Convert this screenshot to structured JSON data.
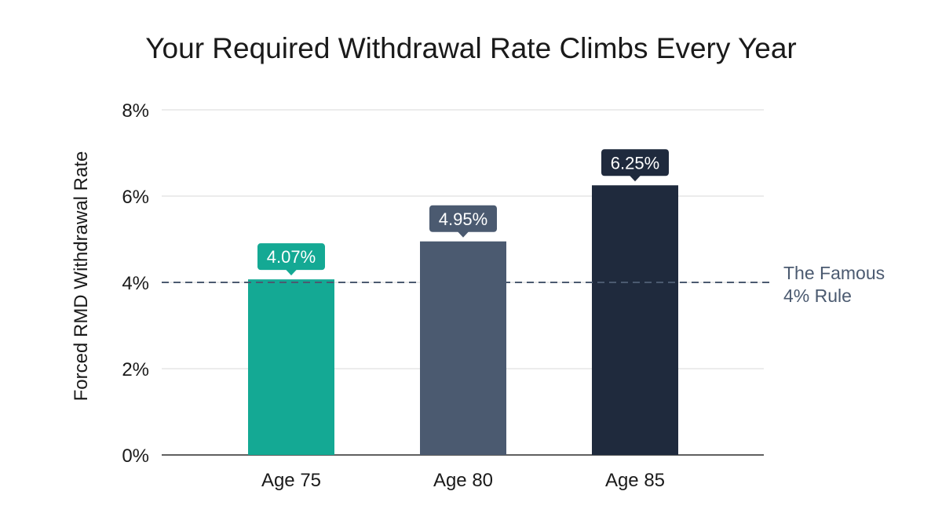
{
  "chart_data": {
    "type": "bar",
    "title": "Your Required Withdrawal Rate Climbs Every Year",
    "xlabel": "",
    "ylabel": "Forced RMD Withdrawal Rate",
    "categories": [
      "Age 75",
      "Age 80",
      "Age 85"
    ],
    "values": [
      4.07,
      4.95,
      6.25
    ],
    "data_labels": [
      "4.07%",
      "4.95%",
      "6.25%"
    ],
    "bar_colors": [
      "#14a994",
      "#4b5a70",
      "#1f2a3d"
    ],
    "ylim": [
      0,
      8
    ],
    "yticks": [
      0,
      2,
      4,
      6,
      8
    ],
    "ytick_labels": [
      "0%",
      "2%",
      "4%",
      "6%",
      "8%"
    ],
    "grid": true,
    "reference_line": {
      "value": 4,
      "label_lines": [
        "The Famous",
        "4% Rule"
      ],
      "color": "#4b5a70",
      "style": "dashed"
    }
  }
}
